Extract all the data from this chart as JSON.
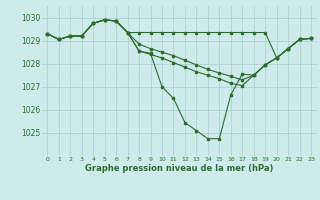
{
  "background_color": "#ceeaea",
  "grid_color": "#aacccc",
  "line_color": "#2d6e2d",
  "title": "Graphe pression niveau de la mer (hPa)",
  "xlim": [
    -0.5,
    23.5
  ],
  "ylim": [
    1024.0,
    1030.5
  ],
  "yticks": [
    1025,
    1026,
    1027,
    1028,
    1029,
    1030
  ],
  "xticks": [
    0,
    1,
    2,
    3,
    4,
    5,
    6,
    7,
    8,
    9,
    10,
    11,
    12,
    13,
    14,
    15,
    16,
    17,
    18,
    19,
    20,
    21,
    22,
    23
  ],
  "s1": [
    1029.3,
    1029.05,
    1029.2,
    1029.2,
    1029.75,
    1029.9,
    1029.85,
    1029.35,
    1028.55,
    1028.45,
    1027.0,
    1026.5,
    1025.45,
    1025.1,
    1024.75,
    1024.75,
    1026.65,
    1027.55,
    1027.5,
    1027.95,
    1028.25,
    1028.65,
    1029.05,
    1029.1
  ],
  "s2": [
    1029.3,
    1029.05,
    1029.2,
    1029.2,
    1029.75,
    1029.9,
    1029.85,
    1029.35,
    1029.35,
    1029.35,
    1029.35,
    1029.35,
    1029.35,
    1029.35,
    1029.35,
    1029.35,
    1029.35,
    1029.35,
    1029.35,
    1029.35,
    1028.25,
    1028.65,
    1029.05,
    1029.1
  ],
  "s3": [
    1029.3,
    1029.05,
    1029.2,
    1029.2,
    1029.75,
    1029.9,
    1029.85,
    1029.35,
    1028.85,
    1028.65,
    1028.5,
    1028.35,
    1028.15,
    1027.95,
    1027.75,
    1027.6,
    1027.45,
    1027.3,
    1027.5,
    1027.95,
    1028.25,
    1028.65,
    1029.05,
    1029.1
  ],
  "s4": [
    1029.3,
    1029.05,
    1029.2,
    1029.2,
    1029.75,
    1029.9,
    1029.85,
    1029.35,
    1028.55,
    1028.4,
    1028.25,
    1028.05,
    1027.85,
    1027.65,
    1027.5,
    1027.35,
    1027.15,
    1027.05,
    1027.5,
    1027.95,
    1028.25,
    1028.65,
    1029.05,
    1029.1
  ]
}
